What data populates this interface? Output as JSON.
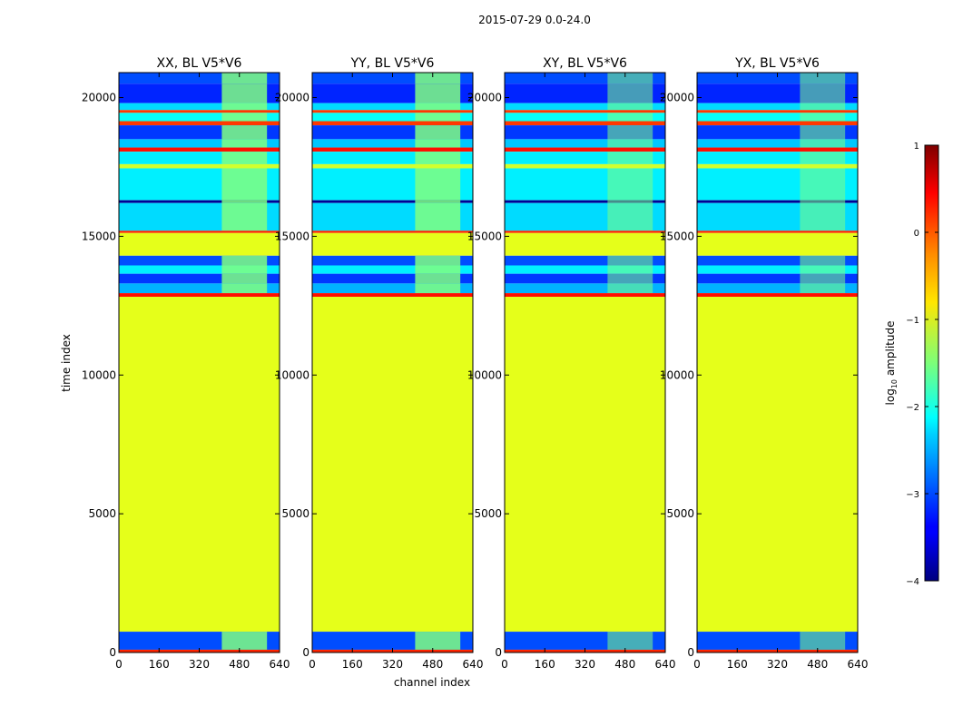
{
  "chart_data": {
    "type": "heatmap",
    "suptitle": "2015-07-29 0.0-24.0",
    "xlabel": "channel index",
    "ylabel": "time index",
    "xlim": [
      0,
      640
    ],
    "ylim": [
      0,
      20900
    ],
    "x_ticks": [
      0,
      160,
      320,
      480,
      640
    ],
    "y_ticks": [
      0,
      5000,
      10000,
      15000,
      20000
    ],
    "x_tick_labels": [
      "0",
      "160",
      "320",
      "480",
      "640"
    ],
    "y_tick_labels": [
      "0",
      "5000",
      "10000",
      "15000",
      "20000"
    ],
    "colorscale": "jet",
    "colorbar": {
      "label_prefix": "log",
      "label_sub": "10",
      "label_suffix": " amplitude",
      "range": [
        -4,
        1
      ],
      "ticks": [
        1,
        0,
        -1,
        -2,
        -3,
        -4
      ],
      "tick_labels": [
        "1",
        "0",
        "−1",
        "−2",
        "−3",
        "−4"
      ]
    },
    "panels": [
      {
        "title": "XX, BL V5*V6",
        "pol": "XX"
      },
      {
        "title": "YY, BL V5*V6",
        "pol": "YY"
      },
      {
        "title": "XY, BL V5*V6",
        "pol": "XY"
      },
      {
        "title": "YX, BL V5*V6",
        "pol": "YX"
      }
    ],
    "bands": [
      {
        "t0": 20900,
        "t1": 20500,
        "value": -3.0
      },
      {
        "t0": 20500,
        "t1": 19800,
        "value": -3.2
      },
      {
        "t0": 19800,
        "t1": 19550,
        "value": -2.3
      },
      {
        "t0": 19550,
        "t1": 19450,
        "value": 0.1
      },
      {
        "t0": 19450,
        "t1": 19150,
        "value": -2.1
      },
      {
        "t0": 19150,
        "t1": 19000,
        "value": 0.1
      },
      {
        "t0": 19000,
        "t1": 18500,
        "value": -3.1
      },
      {
        "t0": 18500,
        "t1": 18200,
        "value": -2.4
      },
      {
        "t0": 18200,
        "t1": 18050,
        "value": 0.3
      },
      {
        "t0": 18050,
        "t1": 17600,
        "value": -2.2
      },
      {
        "t0": 17600,
        "t1": 17450,
        "value": -1.1
      },
      {
        "t0": 17450,
        "t1": 16300,
        "value": -2.2
      },
      {
        "t0": 16300,
        "t1": 16200,
        "value": -3.9
      },
      {
        "t0": 16200,
        "t1": 15200,
        "value": -2.3
      },
      {
        "t0": 15200,
        "t1": 15120,
        "value": 0.2
      },
      {
        "t0": 15120,
        "t1": 14300,
        "value": -1.0
      },
      {
        "t0": 14300,
        "t1": 13950,
        "value": -3.0
      },
      {
        "t0": 13950,
        "t1": 13650,
        "value": -2.2
      },
      {
        "t0": 13650,
        "t1": 13300,
        "value": -3.1
      },
      {
        "t0": 13300,
        "t1": 12950,
        "value": -2.5
      },
      {
        "t0": 12950,
        "t1": 12820,
        "value": 0.3
      },
      {
        "t0": 12820,
        "t1": 750,
        "value": -1.0
      },
      {
        "t0": 750,
        "t1": 100,
        "value": -3.0
      },
      {
        "t0": 100,
        "t1": 0,
        "value": 0.2
      }
    ],
    "rfi_region": {
      "ch0": 410,
      "ch1": 590,
      "value": -1.5
    }
  }
}
